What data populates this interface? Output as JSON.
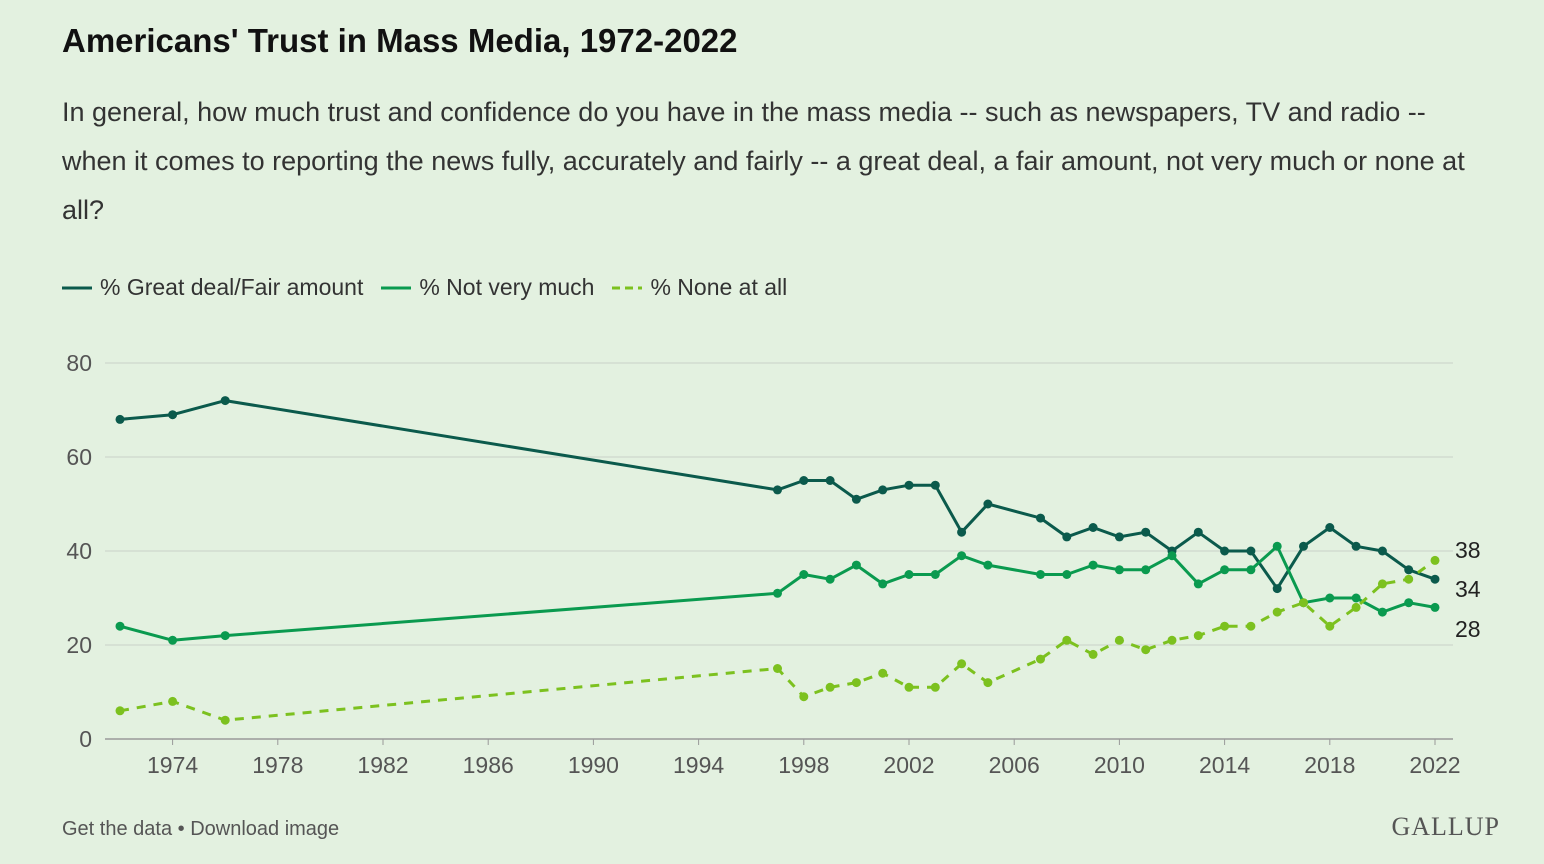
{
  "chart_data": {
    "type": "line",
    "title": "Americans' Trust in Mass Media, 1972-2022",
    "subtitle": "In general, how much trust and confidence do you have in the mass media -- such as newspapers, TV and radio -- when it comes to reporting the news fully, accurately and fairly -- a great deal, a fair amount, not very much or none at all?",
    "xlabel": "",
    "ylabel": "",
    "xlim": [
      1972,
      2022
    ],
    "ylim": [
      0,
      80
    ],
    "yticks": [
      0,
      20,
      40,
      60,
      80
    ],
    "xticks": [
      1974,
      1978,
      1982,
      1986,
      1990,
      1994,
      1998,
      2002,
      2006,
      2010,
      2014,
      2018,
      2022
    ],
    "grid": true,
    "legend_position": "top-left",
    "x": [
      1972,
      1974,
      1976,
      1997,
      1998,
      1999,
      2000,
      2001,
      2002,
      2003,
      2004,
      2005,
      2007,
      2008,
      2009,
      2010,
      2011,
      2012,
      2013,
      2014,
      2015,
      2016,
      2017,
      2018,
      2019,
      2020,
      2021,
      2022
    ],
    "series": [
      {
        "name": "% Great deal/Fair amount",
        "color": "#0b5a4c",
        "dashed": false,
        "end_label": "34",
        "values": [
          68,
          69,
          72,
          53,
          55,
          55,
          51,
          53,
          54,
          54,
          44,
          50,
          47,
          43,
          45,
          43,
          44,
          40,
          44,
          40,
          40,
          32,
          41,
          45,
          41,
          40,
          36,
          34
        ]
      },
      {
        "name": "% Not very much",
        "color": "#0a9a4f",
        "dashed": false,
        "end_label": "28",
        "values": [
          24,
          21,
          22,
          31,
          35,
          34,
          37,
          33,
          35,
          35,
          39,
          37,
          35,
          35,
          37,
          36,
          36,
          39,
          33,
          36,
          36,
          41,
          29,
          30,
          30,
          27,
          29,
          28
        ]
      },
      {
        "name": "% None at all",
        "color": "#7cc11f",
        "dashed": true,
        "end_label": "38",
        "values": [
          6,
          8,
          4,
          15,
          9,
          11,
          12,
          14,
          11,
          11,
          16,
          12,
          17,
          21,
          18,
          21,
          19,
          21,
          22,
          24,
          24,
          27,
          29,
          24,
          28,
          33,
          34,
          38
        ]
      }
    ]
  },
  "footer": {
    "get_data": "Get the data",
    "separator": " • ",
    "download": "Download image"
  },
  "logo": "GALLUP"
}
